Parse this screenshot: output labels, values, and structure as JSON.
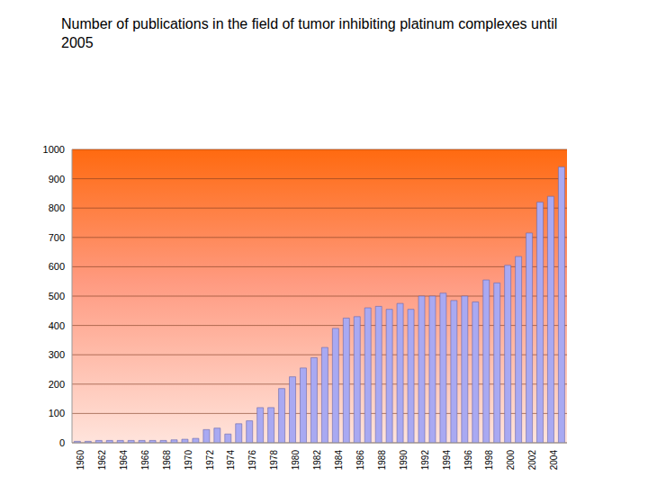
{
  "chart_data": {
    "type": "bar",
    "title": "Number of publications in the field of tumor inhibiting platinum complexes until 2005",
    "categories": [
      "1960",
      null,
      "1962",
      null,
      "1964",
      null,
      "1966",
      null,
      "1968",
      null,
      "1970",
      null,
      "1972",
      null,
      "1974",
      null,
      "1976",
      null,
      "1978",
      null,
      "1980",
      null,
      "1982",
      null,
      "1984",
      null,
      "1986",
      null,
      "1988",
      null,
      "1990",
      null,
      "1992",
      null,
      "1994",
      null,
      "1996",
      null,
      "1998",
      null,
      "2000",
      null,
      "2002",
      null,
      "2004",
      null
    ],
    "values": [
      5,
      5,
      8,
      8,
      8,
      8,
      8,
      8,
      8,
      10,
      12,
      15,
      45,
      50,
      30,
      65,
      75,
      120,
      120,
      185,
      225,
      255,
      290,
      325,
      390,
      425,
      430,
      460,
      465,
      455,
      475,
      455,
      500,
      500,
      510,
      485,
      500,
      480,
      555,
      545,
      605,
      635,
      715,
      820,
      840,
      940
    ],
    "color": "#a9a9f2",
    "ylim": [
      0,
      1000
    ],
    "yticks": [
      0,
      100,
      200,
      300,
      400,
      500,
      600,
      700,
      800,
      900,
      1000
    ],
    "grid": true
  }
}
